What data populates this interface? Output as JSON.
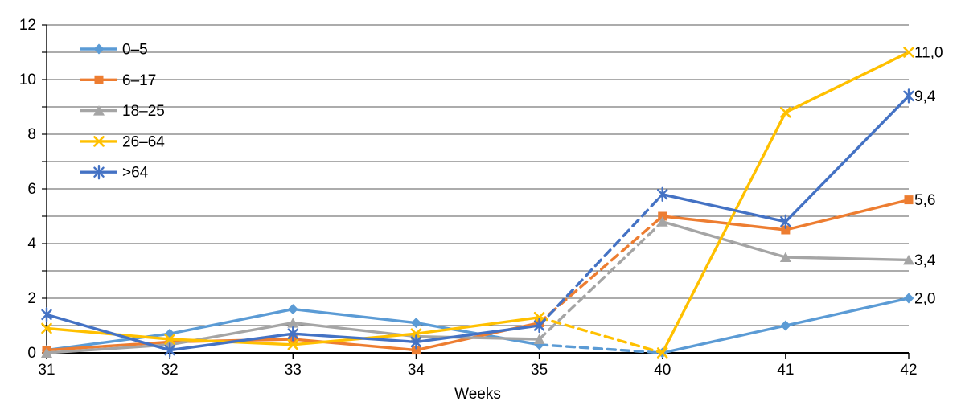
{
  "chart_data": {
    "type": "line",
    "title": "",
    "xlabel": "Weeks",
    "ylabel": "",
    "x_categories": [
      "31",
      "32",
      "33",
      "34",
      "35",
      "40",
      "41",
      "42"
    ],
    "ylim": [
      0,
      12
    ],
    "y_tick_labels": [
      "0",
      "2",
      "4",
      "6",
      "8",
      "10",
      "12"
    ],
    "grid": "horizontal gridlines every 1 unit",
    "grid_color": "#595959",
    "axis_color": "#000000",
    "label_color": "#000000",
    "legend_position": "top-left inside plot area",
    "dashed_x_range": [
      "35",
      "40"
    ],
    "decimal_separator": ",",
    "series": [
      {
        "name": "0–5",
        "color": "#5B9BD5",
        "marker": "diamond",
        "values": [
          0.1,
          0.7,
          1.6,
          1.1,
          0.3,
          0.0,
          1.0,
          2.0
        ],
        "end_label": "2,0"
      },
      {
        "name": "6–17",
        "color": "#ED7D31",
        "marker": "square",
        "values": [
          0.1,
          0.4,
          0.5,
          0.1,
          1.1,
          5.0,
          4.5,
          5.6
        ],
        "end_label": "5,6"
      },
      {
        "name": "18–25",
        "color": "#A5A5A5",
        "marker": "triangle",
        "values": [
          0.0,
          0.3,
          1.1,
          0.6,
          0.5,
          4.8,
          3.5,
          3.4
        ],
        "end_label": "3,4"
      },
      {
        "name": "26–64",
        "color": "#FFC000",
        "marker": "x",
        "values": [
          0.9,
          0.5,
          0.3,
          0.7,
          1.3,
          0.0,
          8.8,
          11.0
        ],
        "end_label": "11,0"
      },
      {
        "name": ">64",
        "color": "#4472C4",
        "marker": "asterisk",
        "values": [
          1.4,
          0.1,
          0.7,
          0.4,
          1.0,
          5.8,
          4.8,
          9.4
        ],
        "end_label": "9,4"
      }
    ]
  }
}
